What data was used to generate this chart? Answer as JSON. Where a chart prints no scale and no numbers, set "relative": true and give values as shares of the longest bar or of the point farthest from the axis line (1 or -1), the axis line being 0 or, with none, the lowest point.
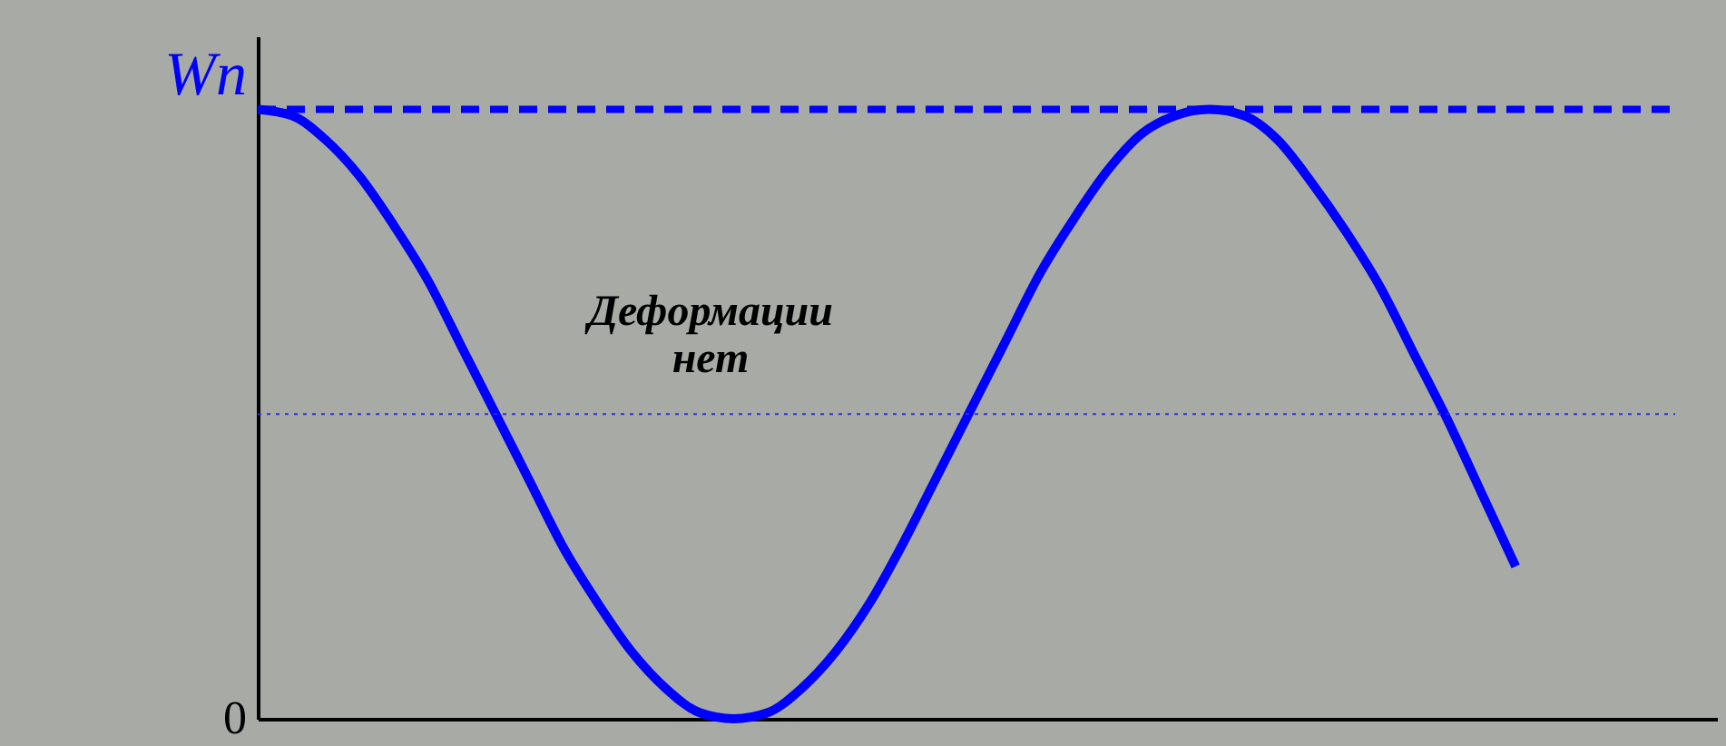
{
  "chart_data": {
    "type": "line",
    "relative": true,
    "ylabel": "Wп",
    "categories": [
      null,
      null,
      null,
      null,
      null,
      null,
      null,
      null,
      null,
      null,
      null,
      null,
      null,
      null,
      null,
      null,
      null,
      null,
      null,
      null,
      null,
      null,
      null,
      null,
      null,
      null,
      null,
      null,
      null,
      null,
      null,
      null,
      null,
      null,
      null,
      null,
      null,
      null
    ],
    "series": [
      {
        "color": "#0000ff",
        "values": [
          1.0,
          0.99,
          0.95,
          0.89,
          0.81,
          0.72,
          0.61,
          0.5,
          0.39,
          0.28,
          0.19,
          0.11,
          0.05,
          0.01,
          0.0,
          0.01,
          0.05,
          0.11,
          0.19,
          0.29,
          0.4,
          0.51,
          0.62,
          0.73,
          0.82,
          0.9,
          0.96,
          0.99,
          1.0,
          0.99,
          0.95,
          0.88,
          0.8,
          0.71,
          0.6,
          0.49,
          0.37,
          0.25
        ]
      }
    ],
    "ref_lines": [
      {
        "axis": "y",
        "value": 1.0,
        "color": "#0000ff",
        "line_style": "dashed"
      },
      {
        "axis": "y",
        "value": 0.5,
        "color": "#2a2aff",
        "line_style": "dotted"
      }
    ],
    "annotations": [
      "0",
      "Деформации\nнет"
    ],
    "grid": false,
    "line_style": "solid",
    "marker": "none"
  }
}
